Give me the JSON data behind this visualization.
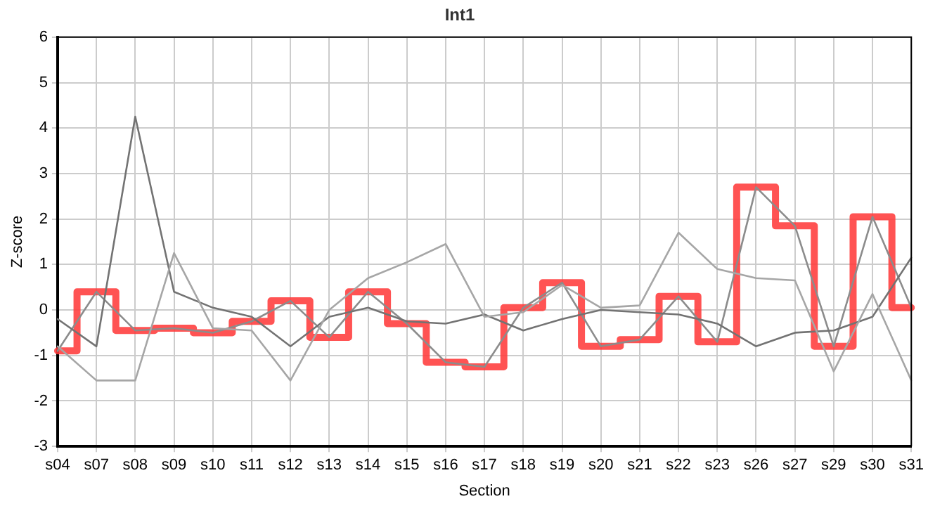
{
  "chart_data": {
    "type": "line",
    "title": "Int1",
    "xlabel": "Section",
    "ylabel": "Z-score",
    "categories": [
      "s04",
      "s07",
      "s08",
      "s09",
      "s10",
      "s11",
      "s12",
      "s13",
      "s14",
      "s15",
      "s16",
      "s17",
      "s18",
      "s19",
      "s20",
      "s21",
      "s22",
      "s23",
      "s26",
      "s27",
      "s29",
      "s30",
      "s31"
    ],
    "ylim": [
      -3,
      6
    ],
    "yticks": [
      -3,
      -2,
      -1,
      0,
      1,
      2,
      3,
      4,
      5,
      6
    ],
    "grid": true,
    "legend": false,
    "marker": "none",
    "series": [
      {
        "color": "#a6a6a6",
        "values": [
          -0.8,
          -1.55,
          -1.55,
          1.25,
          -0.4,
          -0.45,
          -1.55,
          0,
          0.7,
          1.05,
          1.45,
          -0.15,
          -0.05,
          0.55,
          0.05,
          0.1,
          1.7,
          0.9,
          0.7,
          0.65,
          -1.35,
          0.35,
          -1.55
        ]
      },
      {
        "color": "#737373",
        "values": [
          -0.2,
          -0.8,
          4.25,
          0.4,
          0.05,
          -0.15,
          -0.8,
          -0.15,
          0.05,
          -0.25,
          -0.3,
          -0.1,
          -0.45,
          -0.2,
          0,
          -0.05,
          -0.1,
          -0.3,
          -0.8,
          -0.5,
          -0.45,
          -0.15,
          1.15
        ]
      },
      {
        "color": "#8c8c8c",
        "values": [
          -0.9,
          0.4,
          -0.45,
          -0.4,
          -0.5,
          -0.25,
          0.2,
          -0.6,
          0.4,
          -0.3,
          -1.15,
          -1.25,
          0.05,
          0.6,
          -0.8,
          -0.65,
          0.3,
          -0.7,
          2.7,
          1.85,
          -0.8,
          2.05,
          0.05
        ]
      },
      {
        "type": "step",
        "color": "#ff3b3b",
        "values": [
          -0.9,
          0.4,
          -0.45,
          -0.4,
          -0.5,
          -0.25,
          0.2,
          -0.6,
          0.4,
          -0.3,
          -1.15,
          -1.25,
          0.05,
          0.6,
          -0.8,
          -0.65,
          0.3,
          -0.7,
          2.7,
          1.85,
          -0.8,
          2.05,
          0.05
        ]
      }
    ]
  }
}
